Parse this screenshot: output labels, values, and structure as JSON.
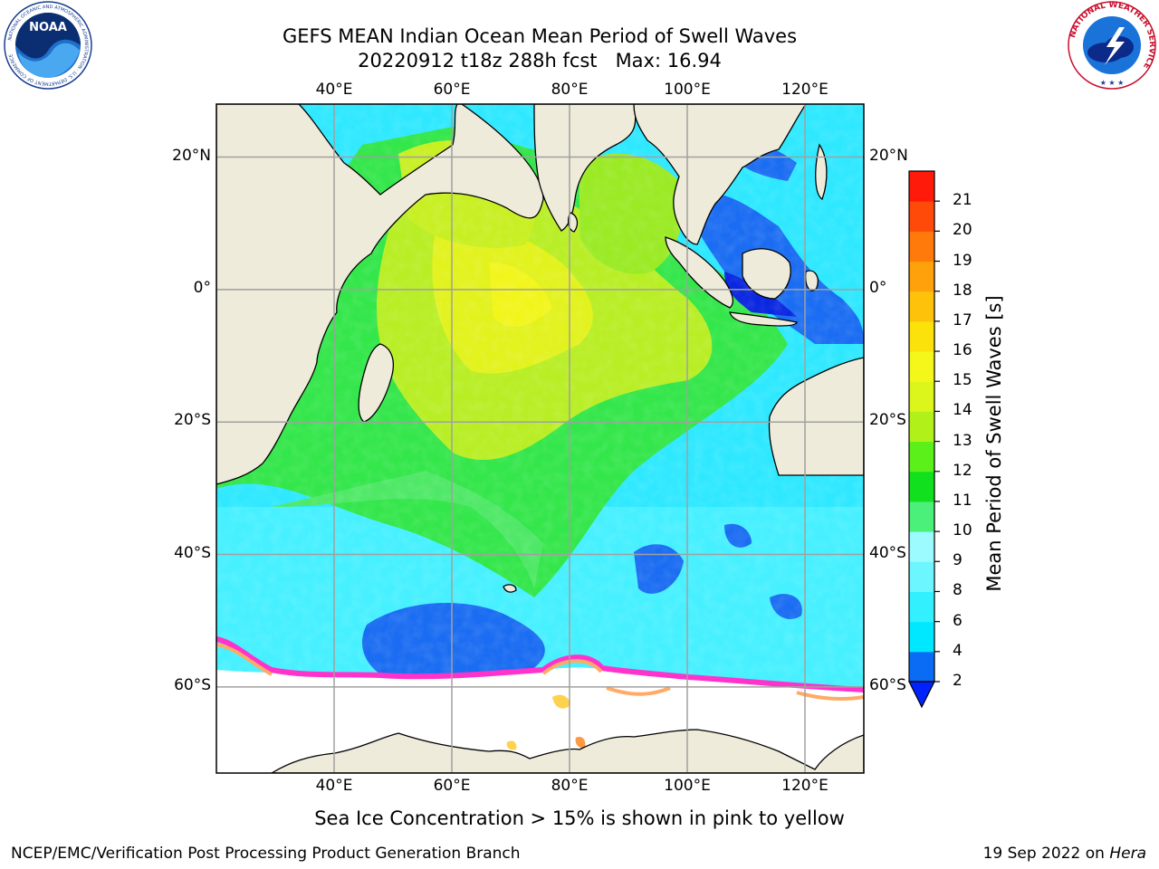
{
  "header": {
    "title_line1": "GEFS MEAN Indian Ocean Mean Period of Swell Waves",
    "title_line2": "20220912 t18z 288h fcst   Max: 16.94"
  },
  "logos": {
    "noaa_text": "NOAA",
    "noaa_ring_text": "NATIONAL OCEANIC AND ATMOSPHERIC ADMINISTRATION · U.S. DEPARTMENT OF COMMERCE",
    "nws_ring_text": "NATIONAL WEATHER SERVICE"
  },
  "map": {
    "lon_labels": [
      "40°E",
      "60°E",
      "80°E",
      "100°E",
      "120°E"
    ],
    "lat_labels": [
      "20°N",
      "0°",
      "20°S",
      "40°S",
      "60°S"
    ],
    "lon_range": [
      20,
      130
    ],
    "lat_range": [
      -73,
      28
    ],
    "gridlines": true,
    "sea_ice_colors": [
      "#ff33cc",
      "#ff77aa",
      "#ffaa66",
      "#ffd24d"
    ]
  },
  "colorbar": {
    "label": "Mean Period of Swell Waves [s]",
    "ticks": [
      "2",
      "4",
      "6",
      "8",
      "9",
      "10",
      "11",
      "12",
      "13",
      "14",
      "15",
      "16",
      "17",
      "18",
      "19",
      "20",
      "21"
    ],
    "colors": [
      "#0a6cf5",
      "#00e8ff",
      "#33f0ff",
      "#6cf6ff",
      "#9cfbff",
      "#4bf07a",
      "#10e01e",
      "#5bf01a",
      "#b2f01a",
      "#dcf51a",
      "#f4f71a",
      "#fbe20a",
      "#ffc20a",
      "#ffa10a",
      "#ff7a0a",
      "#ff4a0a",
      "#ff1a0a"
    ],
    "extend_color": "#0022ff"
  },
  "footer": {
    "sea_ice_note": "Sea Ice Concentration > 15% is shown in pink to yellow",
    "left": "NCEP/EMC/Verification Post Processing Product Generation Branch",
    "right_date": "19 Sep 2022 on ",
    "right_machine": "Hera"
  }
}
